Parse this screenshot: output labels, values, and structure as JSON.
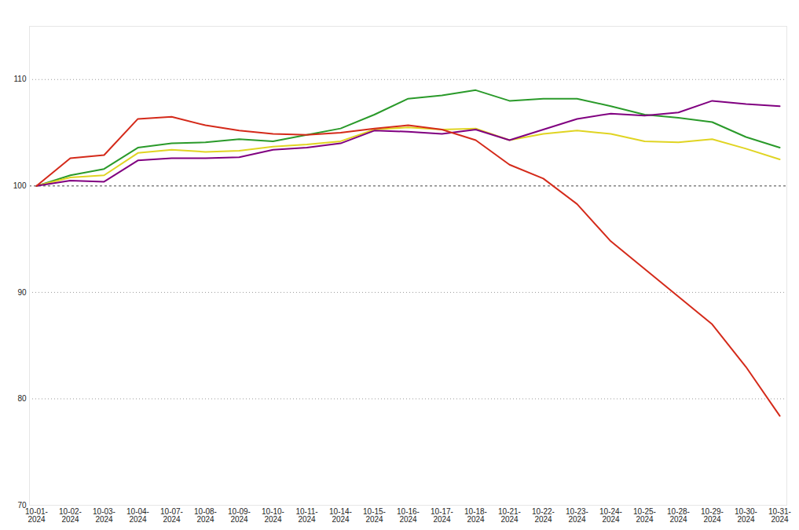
{
  "chart_data": {
    "type": "line",
    "x": [
      "10-01-2024",
      "10-02-2024",
      "10-03-2024",
      "10-04-2024",
      "10-07-2024",
      "10-08-2024",
      "10-09-2024",
      "10-10-2024",
      "10-11-2024",
      "10-14-2024",
      "10-15-2024",
      "10-16-2024",
      "10-17-2024",
      "10-18-2024",
      "10-21-2024",
      "10-22-2024",
      "10-23-2024",
      "10-24-2024",
      "10-25-2024",
      "10-28-2024",
      "10-29-2024",
      "10-30-2024",
      "10-31-2024"
    ],
    "series": [
      {
        "color": "#2a9a2a",
        "values": [
          100,
          101.0,
          101.6,
          103.6,
          104.0,
          104.1,
          104.4,
          104.2,
          104.8,
          105.4,
          106.7,
          108.2,
          108.5,
          109.0,
          108.0,
          108.2,
          108.2,
          107.5,
          106.7,
          106.4,
          106.0,
          104.6,
          103.6
        ]
      },
      {
        "color": "#e0d422",
        "values": [
          100,
          100.8,
          101.0,
          103.1,
          103.4,
          103.2,
          103.3,
          103.7,
          103.9,
          104.2,
          105.3,
          105.5,
          105.3,
          105.4,
          104.3,
          104.9,
          105.2,
          104.9,
          104.2,
          104.1,
          104.4,
          103.5,
          102.5
        ]
      },
      {
        "color": "#800080",
        "values": [
          100,
          100.5,
          100.4,
          102.4,
          102.6,
          102.6,
          102.7,
          103.4,
          103.6,
          104.0,
          105.2,
          105.1,
          104.9,
          105.3,
          104.3,
          105.3,
          106.3,
          106.8,
          106.6,
          106.9,
          108.0,
          107.7,
          107.5
        ]
      },
      {
        "color": "#d42a1a",
        "values": [
          100,
          102.6,
          102.9,
          106.3,
          106.5,
          105.7,
          105.2,
          104.9,
          104.8,
          105.0,
          105.4,
          105.7,
          105.3,
          104.3,
          102.0,
          100.7,
          98.3,
          94.8,
          92.2,
          89.6,
          87.0,
          83.0,
          78.4
        ]
      }
    ],
    "ylim": [
      70,
      115
    ],
    "yticks": [
      70,
      80,
      90,
      100,
      110
    ],
    "grid": true
  }
}
